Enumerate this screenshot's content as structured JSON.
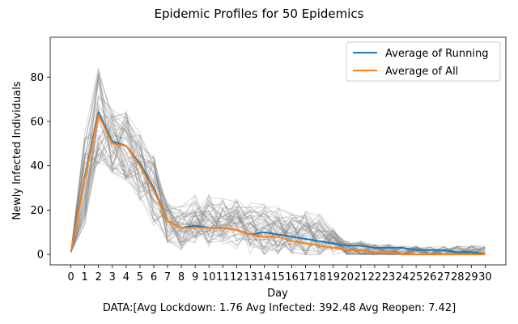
{
  "chart_data": {
    "type": "line",
    "title": "Epidemic Profiles for 50 Epidemics",
    "xlabel": "Day",
    "ylabel": "Newly Infected Individuals",
    "footer": "DATA:[Avg Lockdown: 1.76 Avg Infected: 392.48 Avg Reopen: 7.42]",
    "x": [
      0,
      1,
      2,
      3,
      4,
      5,
      6,
      7,
      8,
      9,
      10,
      11,
      12,
      13,
      14,
      15,
      16,
      17,
      18,
      19,
      20,
      21,
      22,
      23,
      24,
      25,
      26,
      27,
      28,
      29,
      30
    ],
    "xlim": [
      -1.5,
      31.5
    ],
    "ylim": [
      -4.7,
      98
    ],
    "yticks": [
      0,
      20,
      40,
      60,
      80
    ],
    "grid": false,
    "legend_position": "top-right",
    "series": [
      {
        "name": "Average of Running",
        "color": "#1f77b4",
        "values": [
          1,
          35,
          64,
          51,
          49,
          41,
          30,
          15,
          12,
          13,
          12,
          12,
          11,
          9,
          10,
          9,
          8,
          7,
          6,
          5,
          4,
          4,
          3,
          3,
          3,
          2,
          2,
          2,
          1,
          1,
          0
        ]
      },
      {
        "name": "Average of All",
        "color": "#ff7f0e",
        "values": [
          1,
          34,
          63,
          50,
          49,
          40,
          29,
          15,
          12,
          12,
          12,
          12,
          11,
          9,
          8,
          8,
          6,
          5,
          4,
          3,
          2,
          2,
          1,
          1,
          0,
          0,
          0,
          0,
          0,
          0,
          0
        ]
      }
    ],
    "background_series": {
      "count": 50,
      "color": "#808080",
      "description_shown": "50 individual epidemic curves drawn in translucent gray"
    }
  }
}
